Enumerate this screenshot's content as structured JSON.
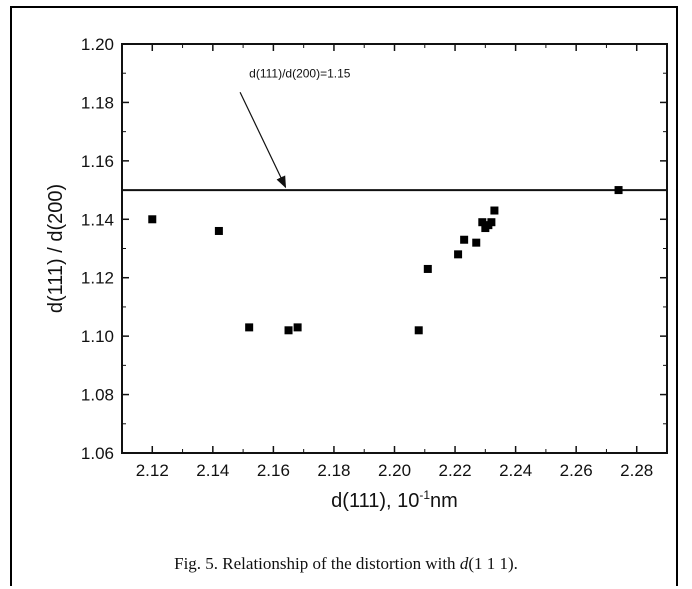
{
  "chart_data": {
    "type": "scatter",
    "xlabel": "d(111), 10",
    "xlabel_sup": "-1",
    "xlabel_unit": "nm",
    "ylabel": "d(111) / d(200)",
    "xlim": [
      2.11,
      2.29
    ],
    "ylim": [
      1.06,
      1.2
    ],
    "xticks": [
      2.12,
      2.14,
      2.16,
      2.18,
      2.2,
      2.22,
      2.24,
      2.26,
      2.28
    ],
    "xtick_labels": [
      "2.12",
      "2.14",
      "2.16",
      "2.18",
      "2.20",
      "2.22",
      "2.24",
      "2.26",
      "2.28"
    ],
    "yticks": [
      1.06,
      1.08,
      1.1,
      1.12,
      1.14,
      1.16,
      1.18,
      1.2
    ],
    "ytick_labels": [
      "1.06",
      "1.08",
      "1.10",
      "1.12",
      "1.14",
      "1.16",
      "1.18",
      "1.20"
    ],
    "grid": false,
    "reference_line": {
      "y": 1.15
    },
    "annotation": {
      "text": "d(111)/d(200)=1.15",
      "text_at": [
        2.152,
        1.1885
      ],
      "arrow_from": [
        2.149,
        1.1835
      ],
      "arrow_to": [
        2.164,
        1.151
      ]
    },
    "points": [
      {
        "x": 2.12,
        "y": 1.14
      },
      {
        "x": 2.142,
        "y": 1.136
      },
      {
        "x": 2.152,
        "y": 1.103
      },
      {
        "x": 2.165,
        "y": 1.102
      },
      {
        "x": 2.168,
        "y": 1.103
      },
      {
        "x": 2.208,
        "y": 1.102
      },
      {
        "x": 2.211,
        "y": 1.123
      },
      {
        "x": 2.221,
        "y": 1.128
      },
      {
        "x": 2.223,
        "y": 1.133
      },
      {
        "x": 2.227,
        "y": 1.132
      },
      {
        "x": 2.229,
        "y": 1.139
      },
      {
        "x": 2.23,
        "y": 1.137
      },
      {
        "x": 2.231,
        "y": 1.138
      },
      {
        "x": 2.232,
        "y": 1.139
      },
      {
        "x": 2.233,
        "y": 1.143
      },
      {
        "x": 2.274,
        "y": 1.15
      }
    ]
  },
  "caption": {
    "prefix": "Fig. 5. Relationship of the distortion with ",
    "italic": "d",
    "suffix": "(1 1 1)."
  }
}
